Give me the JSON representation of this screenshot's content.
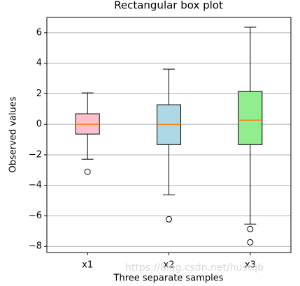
{
  "chart_data": {
    "type": "box",
    "title": "Rectangular box plot",
    "x_label": "Three separate samples",
    "y_label": "Observed values",
    "categories": [
      "x1",
      "x2",
      "x3"
    ],
    "boxes": [
      {
        "whislo": -2.29,
        "q1": -0.64,
        "med": 0,
        "q3": 0.69,
        "whishi": 2.06,
        "fliers": [
          -3.11
        ],
        "color": "#ffc0cb"
      },
      {
        "whislo": -4.62,
        "q1": -1.33,
        "med": -0.01,
        "q3": 1.28,
        "whishi": 3.61,
        "fliers": [
          -6.22
        ],
        "color": "#add8e6"
      },
      {
        "whislo": -6.54,
        "q1": -1.33,
        "med": 0.27,
        "q3": 2.15,
        "whishi": 6.36,
        "fliers": [
          -6.86,
          -7.73
        ],
        "color": "#90ee90"
      }
    ],
    "median_color": "#ff7f0e",
    "ylim": [
      -8.4,
      7.0
    ],
    "yticks": [
      {
        "value": -8,
        "label": "−8"
      },
      {
        "value": -6,
        "label": "−6"
      },
      {
        "value": -4,
        "label": "−4"
      },
      {
        "value": -2,
        "label": "−2"
      },
      0,
      2,
      4,
      6
    ],
    "grid": true,
    "watermark": "https://blog.csdn.net/hustqb"
  }
}
